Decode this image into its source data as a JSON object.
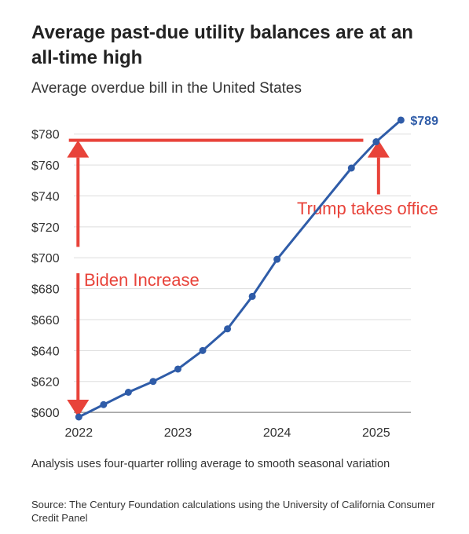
{
  "title": "Average past-due utility balances are at an all-time high",
  "subtitle": "Average overdue bill in the United States",
  "note": "Analysis uses four-quarter rolling average to smooth seasonal variation",
  "source": "Source: The Century Foundation calculations using the University of California Consumer Credit Panel",
  "chart_data": {
    "type": "line",
    "title": "Average past-due utility balances are at an all-time high",
    "subtitle": "Average overdue bill in the United States",
    "xlabel": "",
    "ylabel": "",
    "xlim": [
      2021.95,
      2025.35
    ],
    "ylim": [
      597,
      790
    ],
    "x_ticks": [
      {
        "value": 2022,
        "label": "2022"
      },
      {
        "value": 2023,
        "label": "2023"
      },
      {
        "value": 2024,
        "label": "2024"
      },
      {
        "value": 2025,
        "label": "2025"
      }
    ],
    "y_ticks": [
      {
        "value": 600,
        "label": "$600"
      },
      {
        "value": 620,
        "label": "$620"
      },
      {
        "value": 640,
        "label": "$640"
      },
      {
        "value": 660,
        "label": "$660"
      },
      {
        "value": 680,
        "label": "$680"
      },
      {
        "value": 700,
        "label": "$700"
      },
      {
        "value": 720,
        "label": "$720"
      },
      {
        "value": 740,
        "label": "$740"
      },
      {
        "value": 760,
        "label": "$760"
      },
      {
        "value": 780,
        "label": "$780"
      }
    ],
    "grid": true,
    "legend": "none",
    "series": [
      {
        "color": "#2f5ca8",
        "points": [
          {
            "x": 2022.0,
            "y": 597
          },
          {
            "x": 2022.25,
            "y": 605
          },
          {
            "x": 2022.5,
            "y": 613
          },
          {
            "x": 2022.75,
            "y": 620
          },
          {
            "x": 2023.0,
            "y": 628
          },
          {
            "x": 2023.25,
            "y": 640
          },
          {
            "x": 2023.5,
            "y": 654
          },
          {
            "x": 2023.75,
            "y": 675
          },
          {
            "x": 2024.0,
            "y": 699
          },
          {
            "x": 2024.75,
            "y": 758
          },
          {
            "x": 2025.0,
            "y": 775
          },
          {
            "x": 2025.25,
            "y": 789
          }
        ]
      }
    ],
    "end_label": "$789",
    "annotations": {
      "color": "#e8433a",
      "reference_line_y": 776,
      "reference_line_x": [
        2021.9,
        2024.87
      ],
      "biden_label": "Biden Increase",
      "trump_label": "Trump takes office",
      "biden_arrow_x": 2022.0,
      "biden_arrow_up": [
        707,
        776
      ],
      "biden_arrow_down": [
        690,
        597
      ],
      "trump_arrow_x": 2025.0,
      "trump_arrow": [
        741,
        776
      ]
    }
  }
}
